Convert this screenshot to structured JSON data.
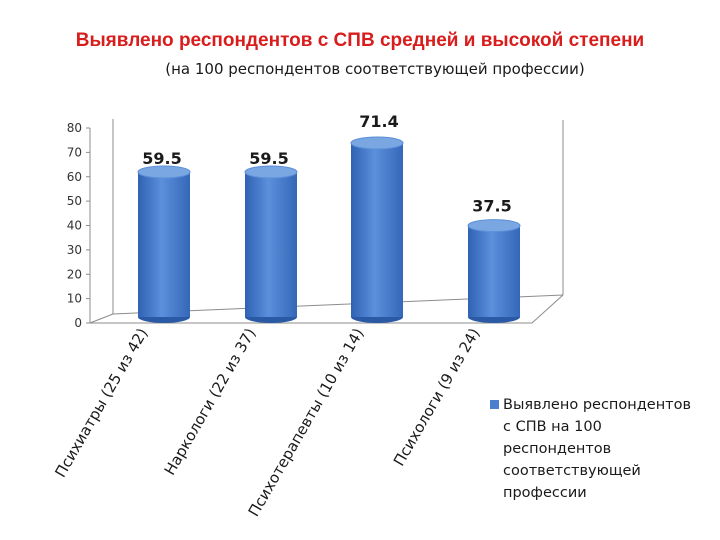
{
  "title": "Выявлено респондентов с СПВ средней и высокой степени",
  "subtitle": "(на 100 респондентов соответствующей профессии)",
  "colors": {
    "title": "#d91c1c",
    "bar": "#4a7fcd",
    "bar_light": "#7aa6e2",
    "bar_dark": "#2a5aa6"
  },
  "chart_data": {
    "type": "bar",
    "categories": [
      "Психиатры (25 из 42)",
      "Наркологи (22 из 37)",
      "Психотерапевты (10 из 14)",
      "Психологи (9 из 24)"
    ],
    "series": [
      {
        "name": "Выявлено респондентов с СПВ на 100 респондентов соответствующей профессии",
        "values": [
          59.5,
          59.5,
          71.4,
          37.5
        ],
        "labels": [
          "59.5",
          "59.5",
          "71.4",
          "37.5"
        ]
      }
    ],
    "ylim": [
      0,
      80
    ],
    "yticks": [
      0,
      10,
      20,
      30,
      40,
      50,
      60,
      70,
      80
    ],
    "grid": false,
    "legend_position": "right"
  }
}
